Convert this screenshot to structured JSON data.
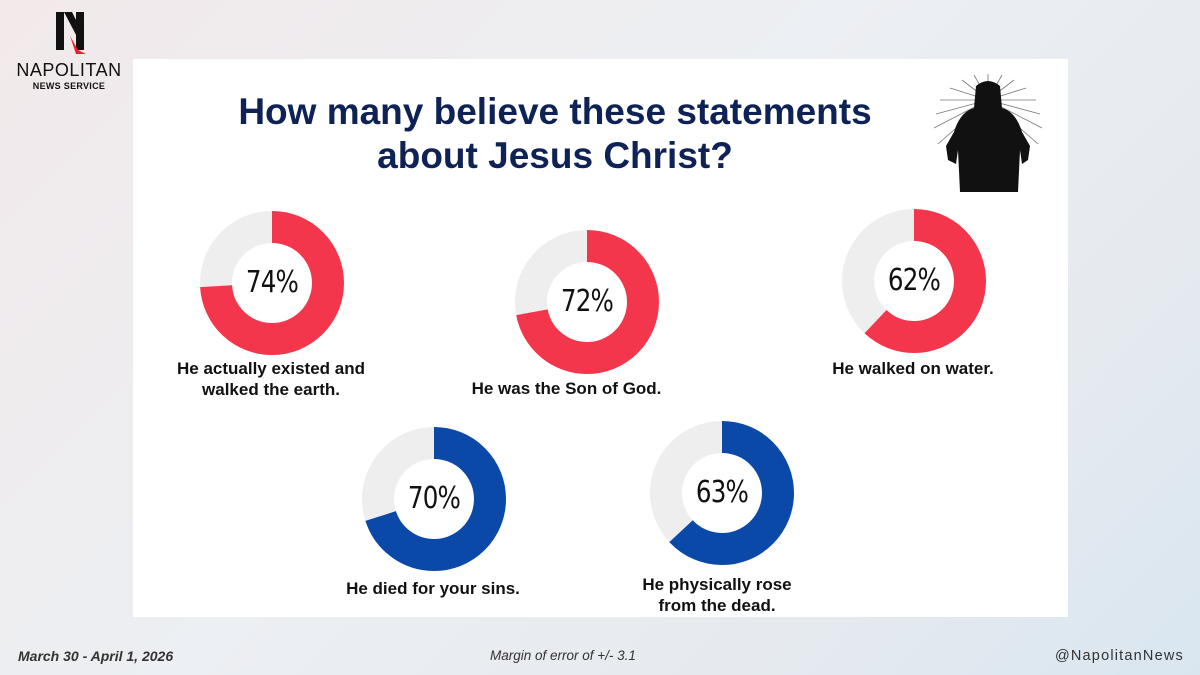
{
  "brand": {
    "name": "NAPOLITAN",
    "subtitle": "NEWS SERVICE"
  },
  "title": "How many believe these statements about Jesus Christ?",
  "footer": {
    "date": "March 30 - April 1, 2026",
    "margin_of_error": "Margin of error of +/- 3.1",
    "handle": "@NapolitanNews"
  },
  "colors": {
    "red": "#f4364c",
    "blue": "#0b49a8",
    "track": "#eeeeee",
    "title": "#0e2255"
  },
  "chart_data": {
    "type": "pie",
    "title": "How many believe these statements about Jesus Christ?",
    "unit": "%",
    "items": [
      {
        "label": "He actually existed and walked the earth.",
        "value": 74,
        "display": "74%",
        "color": "#f4364c"
      },
      {
        "label": "He was the Son of God.",
        "value": 72,
        "display": "72%",
        "color": "#f4364c"
      },
      {
        "label": "He walked on water.",
        "value": 62,
        "display": "62%",
        "color": "#f4364c"
      },
      {
        "label": "He died for your sins.",
        "value": 70,
        "display": "70%",
        "color": "#0b49a8"
      },
      {
        "label": "He physically rose from the dead.",
        "value": 63,
        "display": "63%",
        "color": "#0b49a8"
      }
    ]
  }
}
